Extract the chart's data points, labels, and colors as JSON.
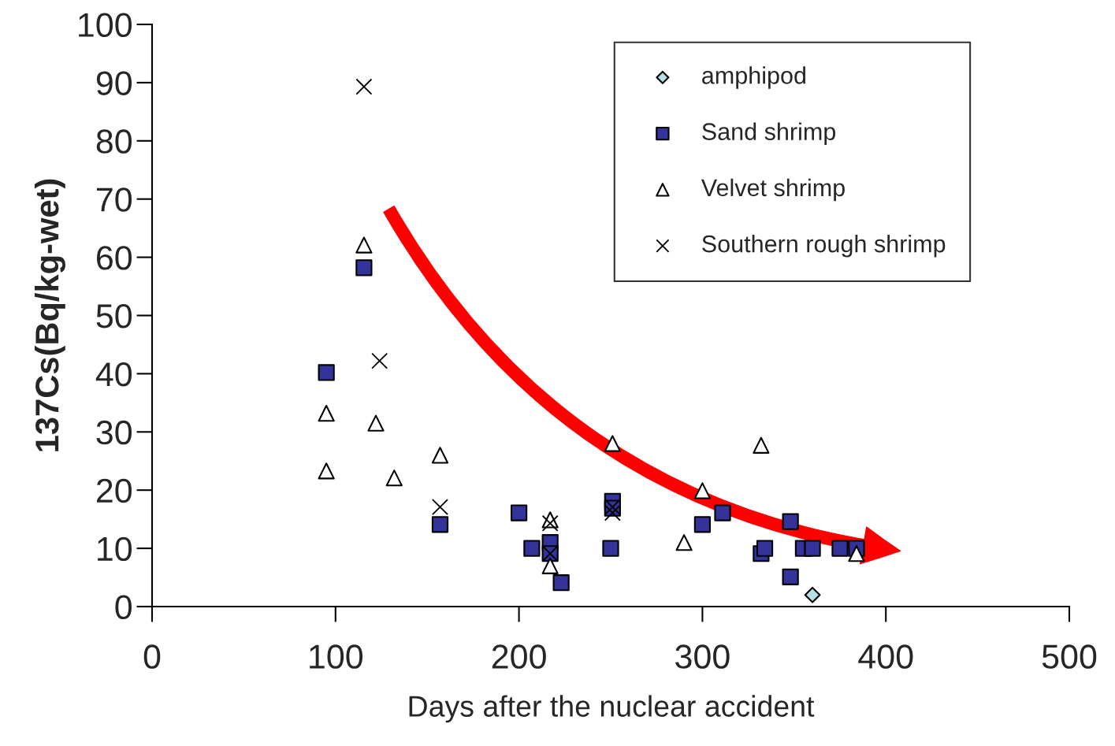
{
  "chart_data": {
    "type": "scatter",
    "xlabel": "Days after the nuclear accident",
    "ylabel": "137Cs(Bq/kg-wet)",
    "xlim": [
      0,
      500
    ],
    "xticks": [
      0,
      100,
      200,
      300,
      400,
      500
    ],
    "ylim": [
      0,
      100
    ],
    "yticks": [
      0,
      10,
      20,
      30,
      40,
      50,
      60,
      70,
      80,
      90,
      100
    ],
    "grid": false,
    "legend": "top right",
    "series": [
      {
        "name": "amphipod",
        "color": "#b8e0e0",
        "marker": "diamond",
        "x": [
          360
        ],
        "values": [
          2.0
        ]
      },
      {
        "name": "Sand shrimp",
        "color": "#333399",
        "marker": "square",
        "x": [
          95,
          115.5,
          157,
          200,
          207,
          217,
          217,
          223,
          251,
          251,
          250,
          300,
          311,
          332,
          334,
          348,
          348,
          355,
          360,
          375,
          384
        ],
        "values": [
          40.2,
          58.2,
          14.1,
          16.1,
          10.0,
          11.0,
          9.1,
          4.1,
          18.1,
          16.9,
          10.0,
          14.1,
          16.1,
          9.1,
          10.0,
          14.6,
          5.1,
          10.0,
          10.0,
          10.0,
          10.0
        ]
      },
      {
        "name": "Velvet shrimp",
        "color": "#ffffff",
        "marker": "triangle",
        "x": [
          95,
          95,
          115.5,
          122,
          132,
          157,
          217,
          217,
          251,
          290,
          300,
          332,
          384
        ],
        "values": [
          23.3,
          33.2,
          62.1,
          31.5,
          22.1,
          26.0,
          14.9,
          7.0,
          28.0,
          11.0,
          19.9,
          27.7,
          9.1
        ]
      },
      {
        "name": "Southern rough shrimp",
        "color": "#000000",
        "marker": "cross",
        "x": [
          115.5,
          124,
          157,
          217,
          217,
          251,
          251
        ],
        "values": [
          89.3,
          42.2,
          17.1,
          14.3,
          9.1,
          17.1,
          16.1
        ]
      }
    ]
  }
}
